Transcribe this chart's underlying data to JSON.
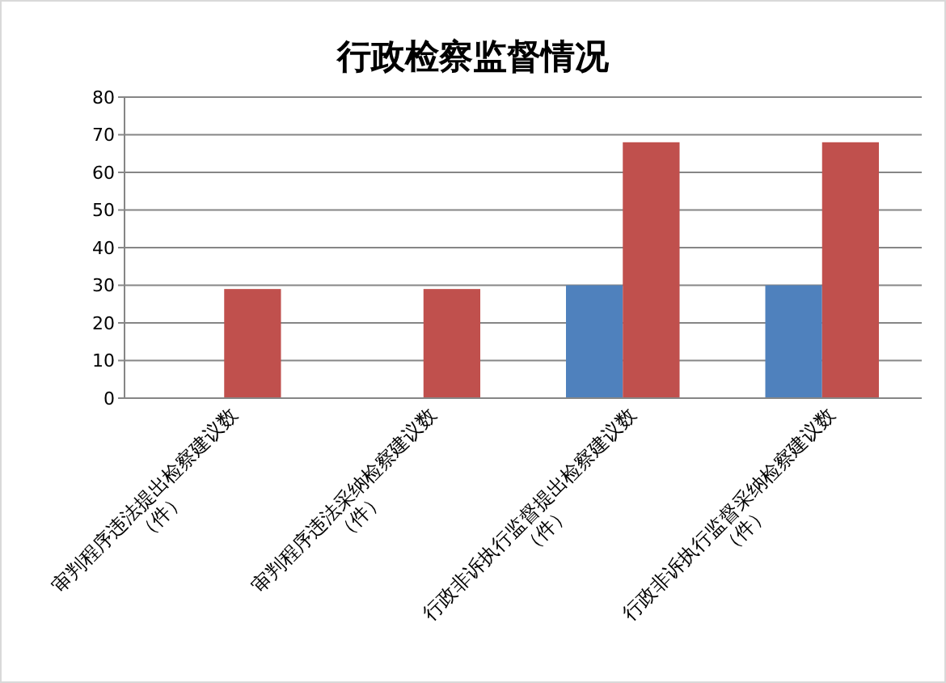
{
  "chart_data": {
    "type": "bar",
    "title": "行政检察监督情况",
    "categories": [
      "审判程序违法提出检察建议数\n（件）",
      "审判程序违法采纳检察建议数\n（件）",
      "行政非诉执行监督提出检察建议数\n（件）",
      "行政非诉执行监督采纳检察建议数\n（件）"
    ],
    "series": [
      {
        "color": "#4f81bd",
        "values": [
          0,
          0,
          30,
          30
        ]
      },
      {
        "color": "#c0504d",
        "values": [
          29,
          29,
          68,
          68
        ]
      }
    ],
    "ylim": [
      0,
      80
    ],
    "yticks": [
      0,
      10,
      20,
      30,
      40,
      50,
      60,
      70,
      80
    ],
    "grid": "y"
  }
}
